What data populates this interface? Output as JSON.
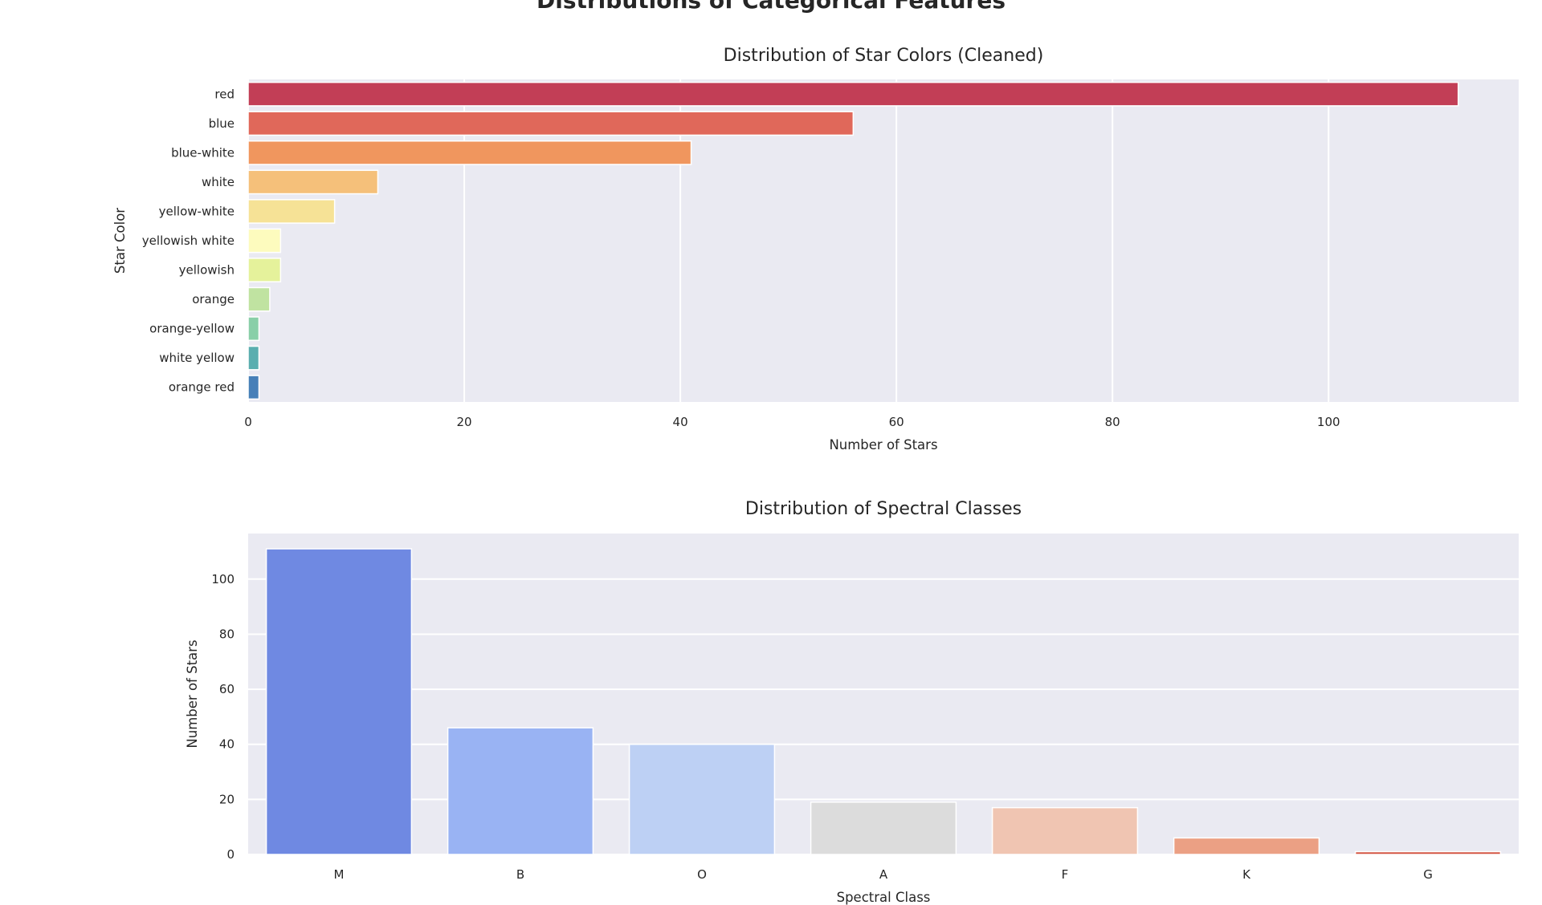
{
  "figure": {
    "title": "Distributions of Categorical Features"
  },
  "chart_data": [
    {
      "type": "bar",
      "orientation": "horizontal",
      "title": "Distribution of Star Colors (Cleaned)",
      "xlabel": "Number of Stars",
      "ylabel": "Star Color",
      "categories": [
        "red",
        "blue",
        "blue-white",
        "white",
        "yellow-white",
        "yellowish white",
        "yellowish",
        "orange",
        "orange-yellow",
        "white yellow",
        "orange red"
      ],
      "values": [
        112,
        56,
        41,
        12,
        8,
        3,
        3,
        2,
        1,
        1,
        1
      ],
      "colors": [
        "#c23e56",
        "#e0685a",
        "#f0965e",
        "#f5c07a",
        "#f6e296",
        "#fdfbbe",
        "#e5f29b",
        "#c0e3a1",
        "#89cfa8",
        "#5aaeaf",
        "#4780b8"
      ],
      "xticks": [
        0,
        20,
        40,
        60,
        80,
        100
      ],
      "xlim": [
        0,
        117.6
      ],
      "grid": true,
      "background": "#eaeaf2"
    },
    {
      "type": "bar",
      "orientation": "vertical",
      "title": "Distribution of Spectral Classes",
      "xlabel": "Spectral Class",
      "ylabel": "Number of Stars",
      "categories": [
        "M",
        "B",
        "O",
        "A",
        "F",
        "K",
        "G"
      ],
      "values": [
        111,
        46,
        40,
        19,
        17,
        6,
        1
      ],
      "colors": [
        "#6f89e2",
        "#99b3f3",
        "#bdd0f4",
        "#dcdcdc",
        "#f0c5b2",
        "#eba084",
        "#d2503e"
      ],
      "yticks": [
        0,
        20,
        40,
        60,
        80,
        100
      ],
      "ylim": [
        0,
        116.55
      ],
      "grid": true,
      "background": "#eaeaf2"
    }
  ]
}
